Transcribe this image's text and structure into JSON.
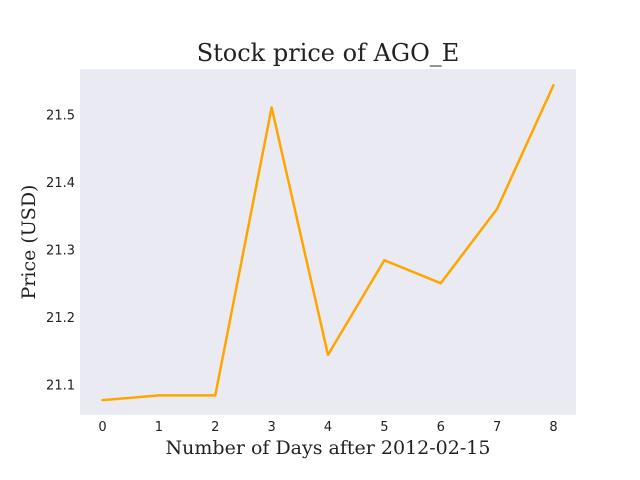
{
  "chart_data": {
    "type": "line",
    "title": "Stock price of AGO_E",
    "xlabel": "Number of Days after 2012-02-15",
    "ylabel": "Price (USD)",
    "x": [
      0,
      1,
      2,
      3,
      4,
      5,
      6,
      7,
      8
    ],
    "series": [
      {
        "values": [
          21.077,
          21.084,
          21.084,
          21.51,
          21.144,
          21.284,
          21.25,
          21.36,
          21.543
        ],
        "color": "#FFA500"
      }
    ],
    "xlim": [
      -0.4,
      8.4
    ],
    "ylim": [
      21.055,
      21.567
    ],
    "xticks": [
      "0",
      "1",
      "2",
      "3",
      "4",
      "5",
      "6",
      "7",
      "8"
    ],
    "yticks": [
      "21.1",
      "21.2",
      "21.3",
      "21.4",
      "21.5"
    ],
    "grid": false,
    "background": "#EAEAF2"
  }
}
